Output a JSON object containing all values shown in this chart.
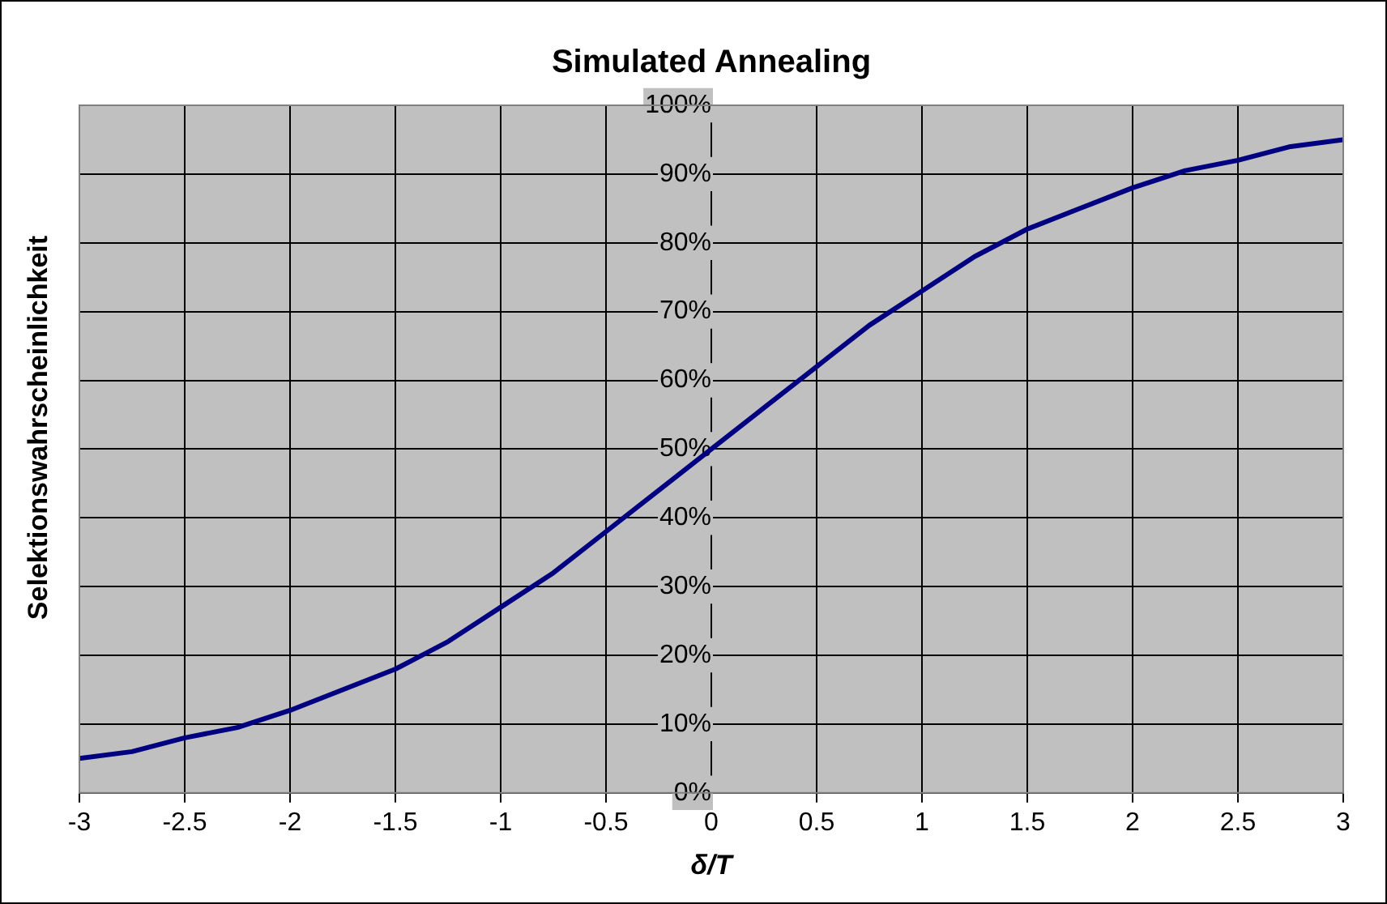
{
  "chart_data": {
    "type": "line",
    "title": "Simulated Annealing",
    "xlabel": "δ/T",
    "ylabel": "Selektionswahrscheinlichkeit",
    "x": [
      -3,
      -2.75,
      -2.5,
      -2.25,
      -2,
      -1.75,
      -1.5,
      -1.25,
      -1,
      -0.75,
      -0.5,
      -0.25,
      0,
      0.25,
      0.5,
      0.75,
      1,
      1.25,
      1.5,
      1.75,
      2,
      2.25,
      2.5,
      2.75,
      3
    ],
    "series": [
      {
        "color": "#000080",
        "values": [
          5,
          6,
          8,
          9.5,
          12,
          15,
          18,
          22,
          27,
          32,
          38,
          44,
          50,
          56,
          62,
          68,
          73,
          78,
          82,
          85,
          88,
          90.5,
          92,
          94,
          95
        ]
      }
    ],
    "xlim": [
      -3,
      3
    ],
    "xticks": [
      -3,
      -2.5,
      -2,
      -1.5,
      -1,
      -0.5,
      0,
      0.5,
      1,
      1.5,
      2,
      2.5,
      3
    ],
    "ylim": [
      0,
      100
    ],
    "yticks": [
      {
        "value": 0,
        "label": "0%"
      },
      {
        "value": 10,
        "label": "10%"
      },
      {
        "value": 20,
        "label": "20%"
      },
      {
        "value": 30,
        "label": "30%"
      },
      {
        "value": 40,
        "label": "40%"
      },
      {
        "value": 50,
        "label": "50%"
      },
      {
        "value": 60,
        "label": "60%"
      },
      {
        "value": 70,
        "label": "70%"
      },
      {
        "value": 80,
        "label": "80%"
      },
      {
        "value": 90,
        "label": "90%"
      },
      {
        "value": 100,
        "label": "100%"
      }
    ],
    "grid": true,
    "legend": false,
    "marker": "none",
    "line_style": "solid"
  }
}
